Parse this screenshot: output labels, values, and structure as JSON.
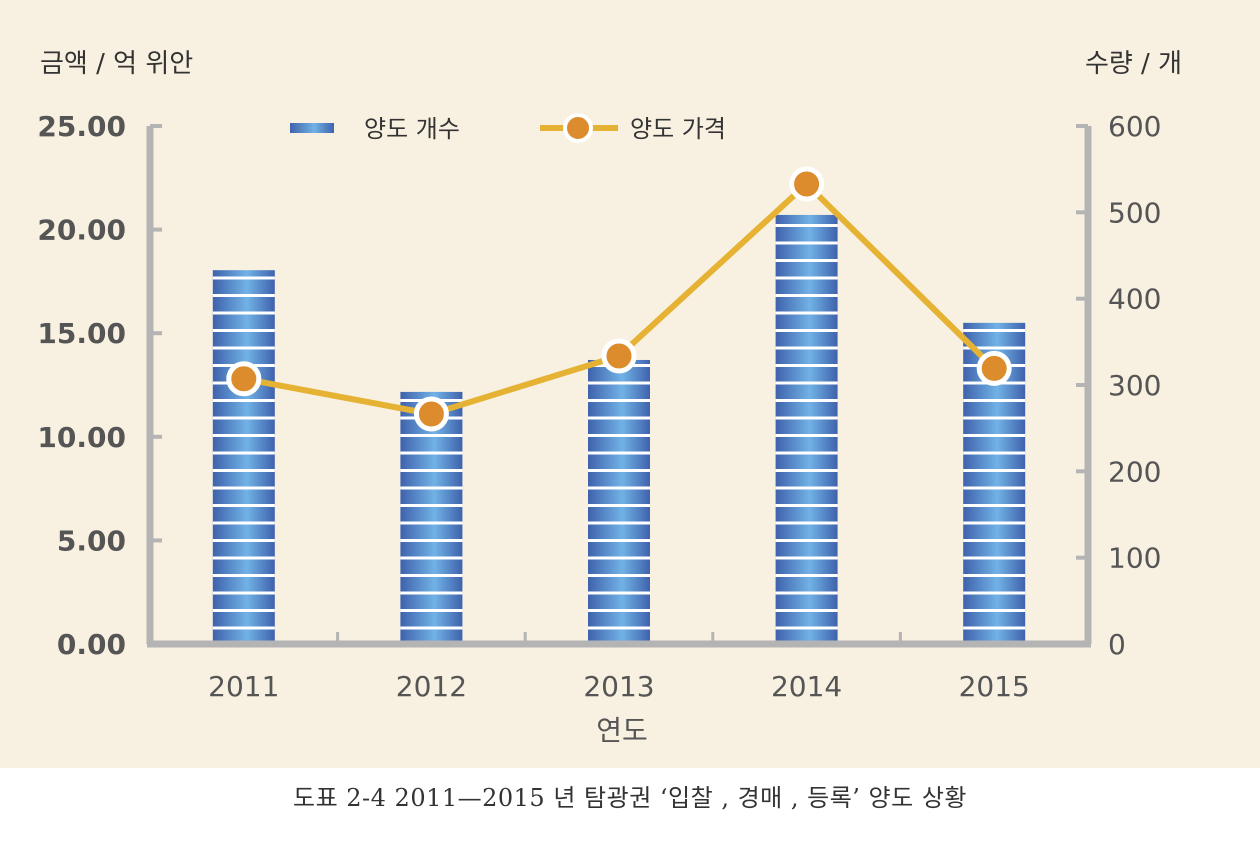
{
  "caption": "도표 2-4 2011—2015 년 탐광권 ‘입찰 , 경매 , 등록’ 양도 상황",
  "chart_data": {
    "type": "bar",
    "title": "",
    "categories": [
      "2011",
      "2012",
      "2013",
      "2014",
      "2015"
    ],
    "xlabel": "연도",
    "y_left": {
      "label": "금액 / 억 위안",
      "ylim": [
        0,
        25
      ],
      "ticks": [
        "0.00",
        "5.00",
        "10.00",
        "15.00",
        "20.00",
        "25.00"
      ]
    },
    "y_right": {
      "label": "수량 / 개",
      "ylim": [
        0,
        600
      ],
      "ticks": [
        "0",
        "100",
        "200",
        "300",
        "400",
        "500",
        "600"
      ]
    },
    "series": [
      {
        "name": "양도 개수",
        "type": "bar",
        "axis": "right",
        "values": [
          433,
          292,
          329,
          497,
          372
        ]
      },
      {
        "name": "양도 가격",
        "type": "line",
        "axis": "left",
        "values": [
          12.8,
          11.1,
          13.9,
          22.2,
          13.3
        ]
      }
    ],
    "grid": false,
    "legend": "top",
    "colors": {
      "bar_dark": "#3f62ac",
      "bar_light": "#71b2e6",
      "line": "#e6b233",
      "marker": "#dc8c2c",
      "axis": "#b4b4b4",
      "text": "#555555",
      "panel": "#f8f1e1"
    }
  }
}
